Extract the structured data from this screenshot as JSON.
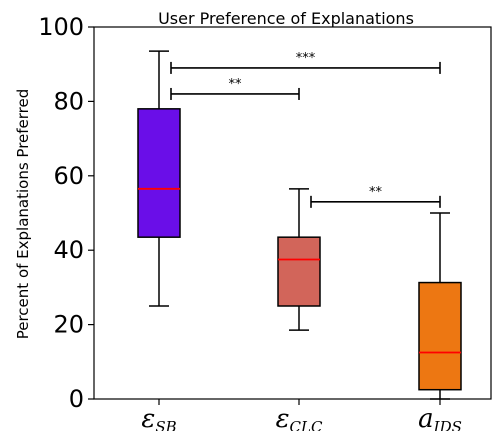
{
  "chart_data": {
    "type": "box",
    "title": "User Preference of Explanations",
    "ylabel": "Percent of Explanations Preferred",
    "xlabel": "",
    "ylim": [
      0,
      100
    ],
    "yticks": [
      0,
      20,
      40,
      60,
      80,
      100
    ],
    "grid": false,
    "categories": [
      {
        "main": "ε",
        "sub": "SB"
      },
      {
        "main": "ε",
        "sub": "CLC"
      },
      {
        "main": "a",
        "sub": "IDS"
      }
    ],
    "boxes": [
      {
        "whisker_low": 25,
        "q1": 43.5,
        "median": 56.5,
        "q3": 78,
        "whisker_high": 93.5,
        "color": "#6a0ee8"
      },
      {
        "whisker_low": 18.5,
        "q1": 25,
        "median": 37.5,
        "q3": 43.5,
        "whisker_high": 56.5,
        "color": "#d2655a"
      },
      {
        "whisker_low": 0,
        "q1": 2.5,
        "median": 12.5,
        "q3": 31.3,
        "whisker_high": 50,
        "color": "#ed7712"
      }
    ],
    "median_color": "#ff0000",
    "significance": [
      {
        "from": 0,
        "to": 2,
        "y": 89,
        "label": "***"
      },
      {
        "from": 0,
        "to": 1,
        "y": 82,
        "label": "**"
      },
      {
        "from": 1,
        "to": 2,
        "y": 53,
        "label": "**"
      }
    ]
  }
}
